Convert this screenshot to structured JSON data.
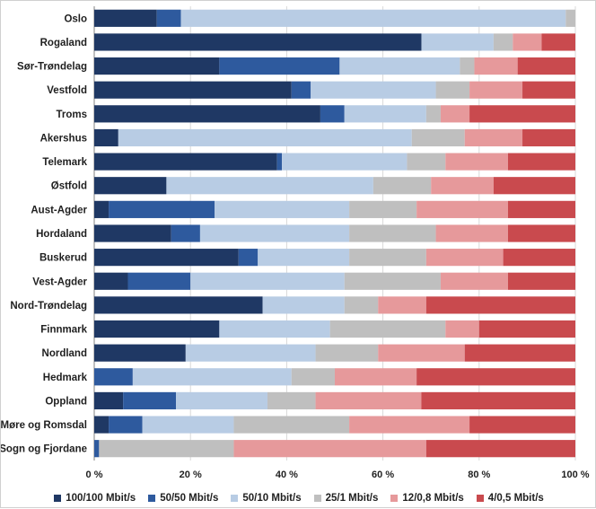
{
  "chart_data": {
    "type": "bar",
    "orientation": "horizontal",
    "stacked": true,
    "percent_stacked": true,
    "categories": [
      "Oslo",
      "Rogaland",
      "Sør-Trøndelag",
      "Vestfold",
      "Troms",
      "Akershus",
      "Telemark",
      "Østfold",
      "Aust-Agder",
      "Hordaland",
      "Buskerud",
      "Vest-Agder",
      "Nord-Trøndelag",
      "Finnmark",
      "Nordland",
      "Hedmark",
      "Oppland",
      "Møre og Romsdal",
      "Sogn og Fjordane"
    ],
    "series": [
      {
        "name": "100/100 Mbit/s",
        "color": "#1f3864",
        "values": [
          13,
          68,
          26,
          41,
          47,
          5,
          38,
          15,
          3,
          16,
          30,
          7,
          35,
          26,
          19,
          0,
          6,
          3,
          0
        ]
      },
      {
        "name": "50/50 Mbit/s",
        "color": "#2e5a9e",
        "values": [
          5,
          0,
          25,
          4,
          5,
          0,
          1,
          0,
          22,
          6,
          4,
          13,
          0,
          0,
          0,
          8,
          11,
          7,
          1
        ]
      },
      {
        "name": "50/10 Mbit/s",
        "color": "#b8cce4",
        "values": [
          80,
          15,
          25,
          26,
          17,
          61,
          26,
          43,
          28,
          31,
          19,
          32,
          17,
          23,
          27,
          33,
          19,
          19,
          0
        ]
      },
      {
        "name": "25/1 Mbit/s",
        "color": "#bfbfbf",
        "values": [
          2,
          4,
          3,
          7,
          3,
          11,
          8,
          12,
          14,
          18,
          16,
          20,
          7,
          24,
          13,
          9,
          10,
          24,
          28
        ]
      },
      {
        "name": "12/0,8 Mbit/s",
        "color": "#e6999b",
        "values": [
          0,
          6,
          9,
          11,
          6,
          12,
          13,
          13,
          19,
          15,
          16,
          14,
          10,
          7,
          18,
          17,
          22,
          25,
          40
        ]
      },
      {
        "name": "4/0,5 Mbit/s",
        "color": "#c94a4e",
        "values": [
          0,
          7,
          12,
          11,
          22,
          11,
          14,
          17,
          14,
          14,
          15,
          14,
          31,
          20,
          23,
          33,
          32,
          22,
          31
        ]
      }
    ],
    "x_ticks": [
      "0 %",
      "20 %",
      "40 %",
      "60 %",
      "80 %",
      "100 %"
    ],
    "xlim": [
      0,
      100
    ],
    "grid": true,
    "legend_position": "bottom",
    "title": "",
    "xlabel": "",
    "ylabel": ""
  }
}
